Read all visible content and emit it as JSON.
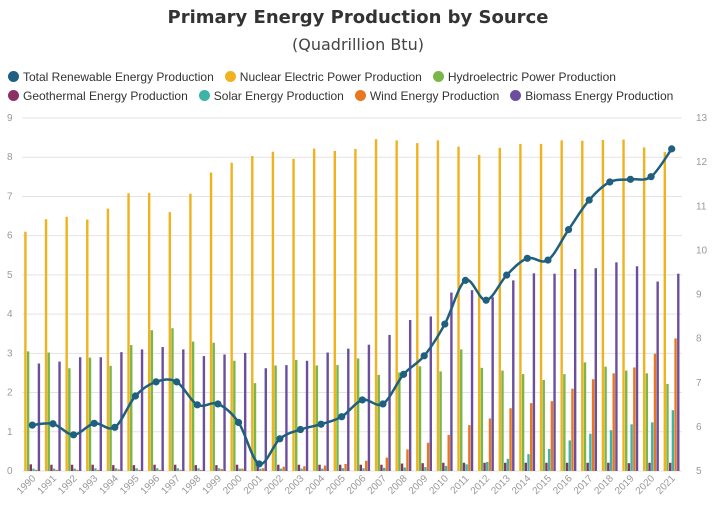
{
  "chart_data": {
    "type": "bar",
    "title": "Primary Energy Production by Source",
    "subtitle": "(Quadrillion Btu)",
    "categories": [
      "1990",
      "1991",
      "1992",
      "1993",
      "1994",
      "1995",
      "1996",
      "1997",
      "1998",
      "1999",
      "2000",
      "2001",
      "2002",
      "2003",
      "2004",
      "2005",
      "2006",
      "2007",
      "2008",
      "2009",
      "2010",
      "2011",
      "2012",
      "2013",
      "2014",
      "2015",
      "2016",
      "2017",
      "2018",
      "2019",
      "2020",
      "2021"
    ],
    "y_left": {
      "min": 0,
      "max": 9,
      "ticks": [
        "0",
        "1",
        "2",
        "3",
        "4",
        "5",
        "6",
        "7",
        "8",
        "9"
      ]
    },
    "y_right": {
      "min": 5,
      "max": 13,
      "ticks": [
        "5",
        "6",
        "7",
        "8",
        "9",
        "10",
        "11",
        "12",
        "13"
      ]
    },
    "grid": "horizontal",
    "legend_position": "top",
    "series": [
      {
        "name": "Total Renewable Energy Production",
        "type": "line",
        "axis": "right",
        "color": "#1f5f7f",
        "values": [
          6.04,
          6.07,
          5.82,
          6.08,
          5.99,
          6.7,
          7.02,
          7.02,
          6.5,
          6.52,
          6.1,
          5.16,
          5.73,
          5.94,
          6.06,
          6.23,
          6.61,
          6.52,
          7.19,
          7.61,
          8.33,
          9.32,
          8.87,
          9.44,
          9.82,
          9.78,
          10.47,
          11.14,
          11.55,
          11.61,
          11.67,
          12.3
        ]
      },
      {
        "name": "Nuclear Electric Power Production",
        "type": "bar",
        "axis": "left",
        "color": "#f0b21f",
        "values": [
          6.1,
          6.42,
          6.48,
          6.41,
          6.69,
          7.08,
          7.09,
          6.6,
          7.07,
          7.61,
          7.86,
          8.03,
          8.14,
          7.96,
          8.22,
          8.16,
          8.21,
          8.46,
          8.43,
          8.36,
          8.43,
          8.27,
          8.06,
          8.24,
          8.34,
          8.34,
          8.43,
          8.42,
          8.44,
          8.45,
          8.25,
          8.13
        ]
      },
      {
        "name": "Hydroelectric Power Production",
        "type": "bar",
        "axis": "left",
        "color": "#7ab648",
        "values": [
          3.05,
          3.02,
          2.62,
          2.89,
          2.68,
          3.21,
          3.59,
          3.64,
          3.3,
          3.27,
          2.81,
          2.24,
          2.69,
          2.83,
          2.69,
          2.7,
          2.87,
          2.45,
          2.51,
          2.67,
          2.54,
          3.1,
          2.63,
          2.56,
          2.47,
          2.32,
          2.47,
          2.77,
          2.66,
          2.56,
          2.49,
          2.22
        ]
      },
      {
        "name": "Geothermal Energy Production",
        "type": "bar",
        "axis": "left",
        "color": "#8b3265",
        "values": [
          0.17,
          0.16,
          0.16,
          0.16,
          0.15,
          0.15,
          0.16,
          0.16,
          0.15,
          0.15,
          0.16,
          0.16,
          0.16,
          0.16,
          0.16,
          0.16,
          0.16,
          0.16,
          0.19,
          0.2,
          0.21,
          0.21,
          0.21,
          0.21,
          0.21,
          0.21,
          0.21,
          0.21,
          0.21,
          0.2,
          0.21,
          0.21
        ]
      },
      {
        "name": "Solar Energy Production",
        "type": "bar",
        "axis": "left",
        "color": "#3cb4a8",
        "values": [
          0.06,
          0.06,
          0.06,
          0.07,
          0.07,
          0.07,
          0.07,
          0.07,
          0.07,
          0.07,
          0.06,
          0.06,
          0.06,
          0.06,
          0.06,
          0.07,
          0.07,
          0.08,
          0.09,
          0.1,
          0.13,
          0.17,
          0.23,
          0.31,
          0.43,
          0.56,
          0.78,
          0.95,
          1.04,
          1.19,
          1.24,
          1.55
        ]
      },
      {
        "name": "Wind Energy Production",
        "type": "bar",
        "axis": "left",
        "color": "#e8771f",
        "values": [
          0.03,
          0.03,
          0.03,
          0.03,
          0.04,
          0.03,
          0.03,
          0.03,
          0.03,
          0.05,
          0.06,
          0.07,
          0.11,
          0.12,
          0.14,
          0.18,
          0.26,
          0.34,
          0.55,
          0.72,
          0.92,
          1.17,
          1.34,
          1.6,
          1.73,
          1.78,
          2.1,
          2.34,
          2.49,
          2.64,
          2.99,
          3.38
        ]
      },
      {
        "name": "Biomass Energy Production",
        "type": "bar",
        "axis": "left",
        "color": "#6b4f9e",
        "values": [
          2.74,
          2.79,
          2.9,
          2.9,
          3.03,
          3.1,
          3.16,
          3.1,
          2.93,
          2.97,
          3.01,
          2.62,
          2.7,
          2.81,
          3.02,
          3.12,
          3.22,
          3.47,
          3.85,
          3.94,
          4.55,
          4.61,
          4.43,
          4.86,
          5.04,
          5.03,
          5.15,
          5.17,
          5.32,
          5.22,
          4.83,
          5.03
        ]
      }
    ]
  }
}
